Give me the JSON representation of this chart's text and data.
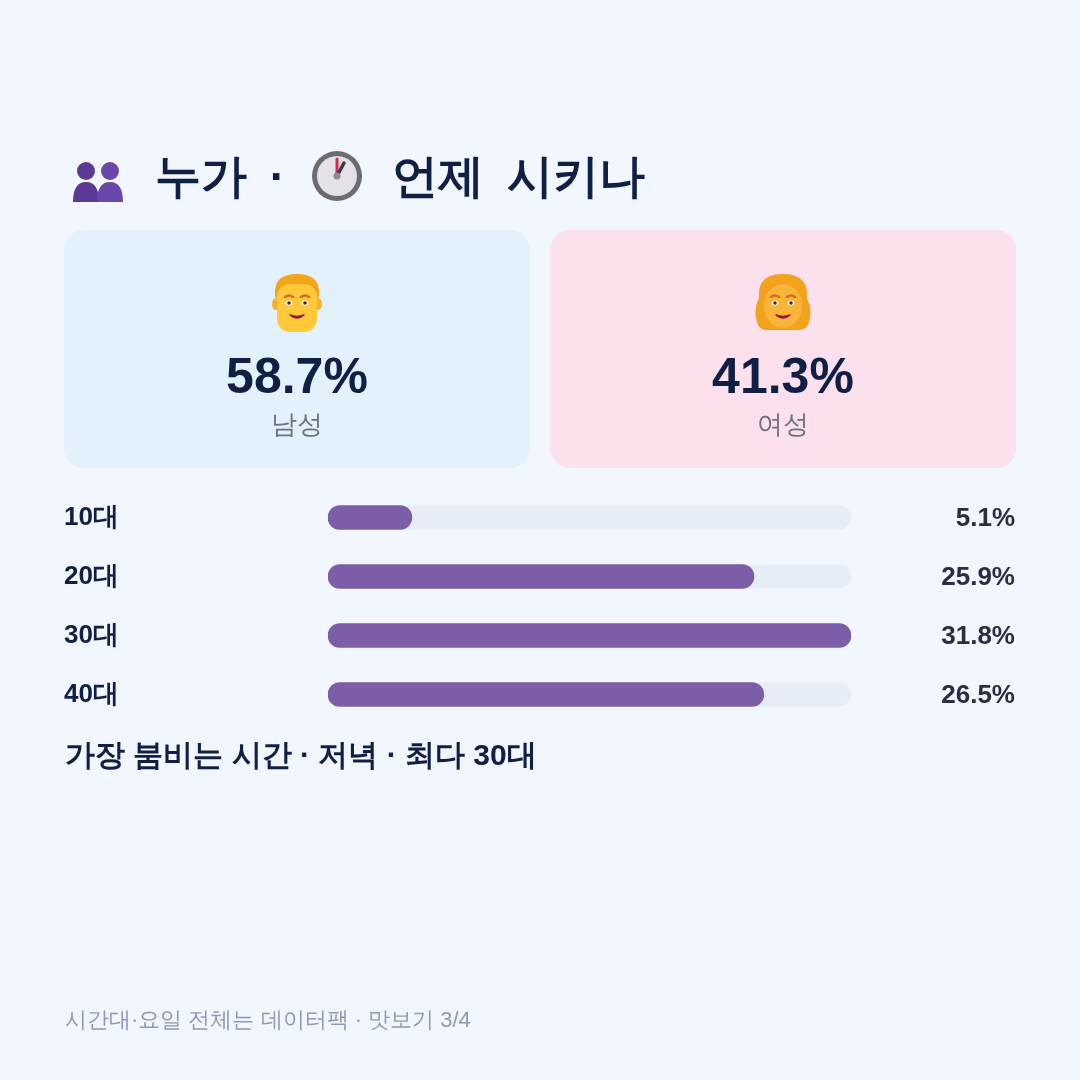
{
  "chart_data": [
    {
      "type": "other",
      "title": "누가 · 언제 시키나",
      "categories": [
        "남성",
        "여성"
      ],
      "values": [
        58.7,
        41.3
      ],
      "value_labels": [
        "58.7%",
        "41.3%"
      ],
      "colors": [
        "#e3f1fc",
        "#fde0ee"
      ]
    },
    {
      "type": "bar",
      "orientation": "horizontal",
      "categories": [
        "10대",
        "20대",
        "30대",
        "40대"
      ],
      "values": [
        5.1,
        25.9,
        31.8,
        26.5
      ],
      "value_labels": [
        "5.1%",
        "25.9%",
        "31.8%",
        "26.5%"
      ],
      "color": "#7b5ea7",
      "xlim": [
        0,
        31.8
      ],
      "annotations": [
        "가장 붐비는 시간 · 저녁 · 최다 30대",
        "시간대·요일 전체는 데이터팩 · 맛보기 3/4"
      ]
    }
  ]
}
